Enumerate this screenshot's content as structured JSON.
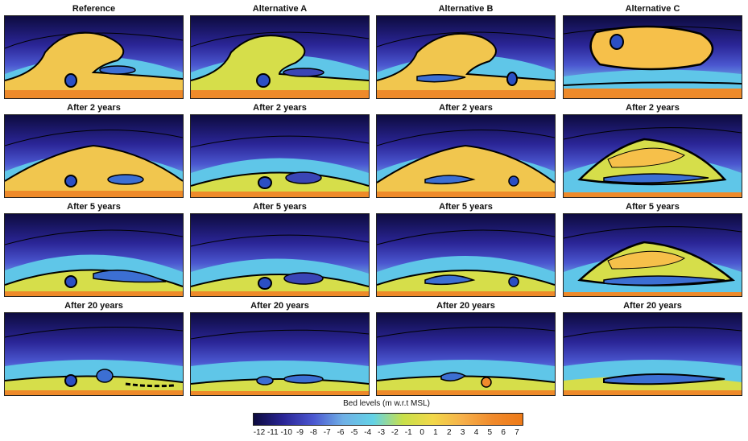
{
  "figure": {
    "rows": [
      [
        "Reference",
        "Alternative A",
        "Alternative B",
        "Alternative C"
      ],
      [
        "After 2 years",
        "After 2 years",
        "After 2 years",
        "After 2 years"
      ],
      [
        "After 5 years",
        "After 5 years",
        "After 5 years",
        "After 5 years"
      ],
      [
        "After 20 years",
        "After 20 years",
        "After 20 years",
        "After 20 years"
      ]
    ]
  },
  "colorbar": {
    "title": "Bed levels (m w.r.t MSL)",
    "ticks": [
      "-12",
      "-11",
      "-10",
      "-9",
      "-8",
      "-7",
      "-6",
      "-5",
      "-4",
      "-3",
      "-2",
      "-1",
      "0",
      "1",
      "2",
      "3",
      "4",
      "5",
      "6",
      "7"
    ],
    "colors": [
      "#0d0b3f",
      "#2a2596",
      "#4b57d0",
      "#6fb0e6",
      "#63d2e6",
      "#c8e04a",
      "#f2d84a",
      "#f6b04a",
      "#f08a2c",
      "#ee7a18"
    ]
  }
}
